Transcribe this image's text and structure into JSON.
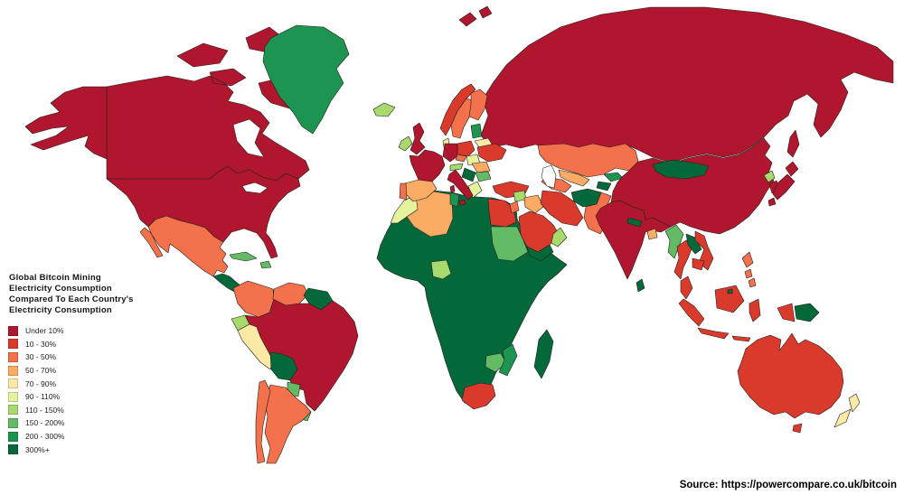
{
  "title": {
    "lines": "Global Bitcoin Mining\nElectricity Consumption\nCompared To Each Country's\nElectricity Consumption"
  },
  "source": {
    "label": "Source: https://powercompare.co.uk/bitcoin"
  },
  "legend": {
    "items": [
      {
        "id": "under-10",
        "label": "Under 10%",
        "color": "#b0172f"
      },
      {
        "id": "10-30",
        "label": "10 - 30%",
        "color": "#d93a2b"
      },
      {
        "id": "30-50",
        "label": "30 - 50%",
        "color": "#f3714b"
      },
      {
        "id": "50-70",
        "label": "50 - 70%",
        "color": "#fbab63"
      },
      {
        "id": "70-90",
        "label": "70 - 90%",
        "color": "#fce9a6"
      },
      {
        "id": "90-110",
        "label": "90 - 110%",
        "color": "#e6f29e"
      },
      {
        "id": "110-150",
        "label": "110 - 150%",
        "color": "#a7d96c"
      },
      {
        "id": "150-200",
        "label": "150 - 200%",
        "color": "#63bb66"
      },
      {
        "id": "200-300",
        "label": "200 - 300%",
        "color": "#1d9551"
      },
      {
        "id": "300-plus",
        "label": "300%+",
        "color": "#04693a"
      }
    ]
  },
  "map": {
    "background": "#ffffff",
    "water_color": "#ffffff",
    "border_color": "#231f1c",
    "regions": [
      {
        "id": "russia",
        "name": "Russia",
        "category": "under-10"
      },
      {
        "id": "svalbard",
        "name": "Svalbard",
        "category": "under-10"
      },
      {
        "id": "canada",
        "name": "Canada",
        "category": "under-10"
      },
      {
        "id": "usa",
        "name": "United States",
        "category": "under-10"
      },
      {
        "id": "hudson-bay",
        "name": "Hudson Bay",
        "category": "water"
      },
      {
        "id": "great-lakes",
        "name": "Great Lakes",
        "category": "water"
      },
      {
        "id": "greenland",
        "name": "Greenland",
        "category": "200-300"
      },
      {
        "id": "iceland",
        "name": "Iceland",
        "category": "110-150"
      },
      {
        "id": "mexico",
        "name": "Mexico",
        "category": "30-50"
      },
      {
        "id": "central-america",
        "name": "Central America",
        "category": "300-plus"
      },
      {
        "id": "cuba",
        "name": "Cuba",
        "category": "150-200"
      },
      {
        "id": "hispaniola",
        "name": "Hispaniola",
        "category": "150-200"
      },
      {
        "id": "brazil",
        "name": "Brazil",
        "category": "under-10"
      },
      {
        "id": "colombia",
        "name": "Colombia",
        "category": "30-50"
      },
      {
        "id": "venezuela",
        "name": "Venezuela",
        "category": "30-50"
      },
      {
        "id": "guyanas",
        "name": "Guianas",
        "category": "300-plus"
      },
      {
        "id": "ecuador",
        "name": "Ecuador",
        "category": "110-150"
      },
      {
        "id": "peru",
        "name": "Peru",
        "category": "70-90"
      },
      {
        "id": "bolivia",
        "name": "Bolivia",
        "category": "300-plus"
      },
      {
        "id": "paraguay",
        "name": "Paraguay",
        "category": "150-200"
      },
      {
        "id": "uruguay",
        "name": "Uruguay",
        "category": "150-200"
      },
      {
        "id": "argentina",
        "name": "Argentina",
        "category": "30-50"
      },
      {
        "id": "chile",
        "name": "Chile",
        "category": "30-50"
      },
      {
        "id": "africa-other",
        "name": "Africa (other)",
        "category": "300-plus"
      },
      {
        "id": "morocco",
        "name": "Morocco",
        "category": "90-110"
      },
      {
        "id": "algeria",
        "name": "Algeria",
        "category": "50-70"
      },
      {
        "id": "tunisia",
        "name": "Tunisia",
        "category": "200-300"
      },
      {
        "id": "egypt",
        "name": "Egypt",
        "category": "10-30"
      },
      {
        "id": "sudan",
        "name": "Sudan",
        "category": "150-200"
      },
      {
        "id": "nigeria",
        "name": "Nigeria",
        "category": "110-150"
      },
      {
        "id": "zambia-zimbabwe",
        "name": "Zambia & Zimbabwe",
        "category": "150-200"
      },
      {
        "id": "mozambique",
        "name": "Mozambique",
        "category": "200-300"
      },
      {
        "id": "south-africa",
        "name": "South Africa",
        "category": "10-30"
      },
      {
        "id": "madagascar",
        "name": "Madagascar",
        "category": "300-plus"
      },
      {
        "id": "spain",
        "name": "Spain",
        "category": "50-70"
      },
      {
        "id": "portugal",
        "name": "Portugal",
        "category": "30-50"
      },
      {
        "id": "france",
        "name": "France",
        "category": "under-10"
      },
      {
        "id": "uk",
        "name": "United Kingdom",
        "category": "under-10"
      },
      {
        "id": "ireland",
        "name": "Ireland",
        "category": "110-150"
      },
      {
        "id": "norway",
        "name": "Norway",
        "category": "10-30"
      },
      {
        "id": "sweden",
        "name": "Sweden",
        "category": "30-50"
      },
      {
        "id": "finland",
        "name": "Finland",
        "category": "30-50"
      },
      {
        "id": "denmark",
        "name": "Denmark",
        "category": "90-110"
      },
      {
        "id": "baltics",
        "name": "Baltic States",
        "category": "200-300"
      },
      {
        "id": "belarus",
        "name": "Belarus",
        "category": "70-90"
      },
      {
        "id": "poland",
        "name": "Poland",
        "category": "10-30"
      },
      {
        "id": "germany",
        "name": "Germany",
        "category": "under-10"
      },
      {
        "id": "czechia",
        "name": "Czechia",
        "category": "30-50"
      },
      {
        "id": "austria",
        "name": "Austria",
        "category": "110-150"
      },
      {
        "id": "hungary",
        "name": "Hungary",
        "category": "90-110"
      },
      {
        "id": "ukraine",
        "name": "Ukraine",
        "category": "10-30"
      },
      {
        "id": "romania",
        "name": "Romania",
        "category": "50-70"
      },
      {
        "id": "serbia",
        "name": "Serbia & W. Balkans",
        "category": "300-plus"
      },
      {
        "id": "bulgaria",
        "name": "Bulgaria",
        "category": "150-200"
      },
      {
        "id": "greece",
        "name": "Greece",
        "category": "90-110"
      },
      {
        "id": "italy",
        "name": "Italy",
        "category": "under-10"
      },
      {
        "id": "turkey",
        "name": "Turkey",
        "category": "10-30"
      },
      {
        "id": "kazakhstan",
        "name": "Kazakhstan",
        "category": "30-50"
      },
      {
        "id": "uzbekistan",
        "name": "Uzbekistan",
        "category": "50-70"
      },
      {
        "id": "turkmenistan",
        "name": "Turkmenistan",
        "category": "30-50"
      },
      {
        "id": "kyrgyzstan",
        "name": "Kyrgyzstan",
        "category": "200-300"
      },
      {
        "id": "tajikistan",
        "name": "Tajikistan",
        "category": "300-plus"
      },
      {
        "id": "syria",
        "name": "Syria",
        "category": "110-150"
      },
      {
        "id": "iraq",
        "name": "Iraq",
        "category": "50-70"
      },
      {
        "id": "jordan",
        "name": "Jordan & Israel",
        "category": "30-50"
      },
      {
        "id": "saudi-arabia",
        "name": "Saudi Arabia",
        "category": "10-30"
      },
      {
        "id": "yemen",
        "name": "Yemen",
        "category": "300-plus"
      },
      {
        "id": "oman",
        "name": "Oman",
        "category": "110-150"
      },
      {
        "id": "iran",
        "name": "Iran",
        "category": "10-30"
      },
      {
        "id": "caspian-sea",
        "name": "Caspian Sea",
        "category": "water"
      },
      {
        "id": "afghanistan",
        "name": "Afghanistan",
        "category": "300-plus"
      },
      {
        "id": "pakistan",
        "name": "Pakistan",
        "category": "30-50"
      },
      {
        "id": "india",
        "name": "India",
        "category": "under-10"
      },
      {
        "id": "nepal",
        "name": "Nepal",
        "category": "300-plus"
      },
      {
        "id": "bangladesh",
        "name": "Bangladesh",
        "category": "50-70"
      },
      {
        "id": "sri-lanka",
        "name": "Sri Lanka",
        "category": "300-plus"
      },
      {
        "id": "china",
        "name": "China",
        "category": "under-10"
      },
      {
        "id": "mongolia",
        "name": "Mongolia",
        "category": "300-plus"
      },
      {
        "id": "north-korea",
        "name": "North Korea",
        "category": "110-150"
      },
      {
        "id": "south-korea",
        "name": "South Korea",
        "category": "under-10"
      },
      {
        "id": "japan",
        "name": "Japan",
        "category": "under-10"
      },
      {
        "id": "myanmar",
        "name": "Myanmar",
        "category": "150-200"
      },
      {
        "id": "thailand",
        "name": "Thailand",
        "category": "10-30"
      },
      {
        "id": "laos",
        "name": "Laos",
        "category": "300-plus"
      },
      {
        "id": "vietnam",
        "name": "Vietnam",
        "category": "10-30"
      },
      {
        "id": "cambodia",
        "name": "Cambodia",
        "category": "10-30"
      },
      {
        "id": "malaysia",
        "name": "Malaysia",
        "category": "10-30"
      },
      {
        "id": "philippines",
        "name": "Philippines",
        "category": "30-50"
      },
      {
        "id": "indonesia",
        "name": "Indonesia",
        "category": "10-30"
      },
      {
        "id": "brunei",
        "name": "Brunei",
        "category": "300-plus"
      },
      {
        "id": "papua-new-guinea",
        "name": "Papua New Guinea",
        "category": "300-plus"
      },
      {
        "id": "australia",
        "name": "Australia",
        "category": "10-30"
      },
      {
        "id": "new-zealand",
        "name": "New Zealand",
        "category": "70-90"
      }
    ]
  }
}
